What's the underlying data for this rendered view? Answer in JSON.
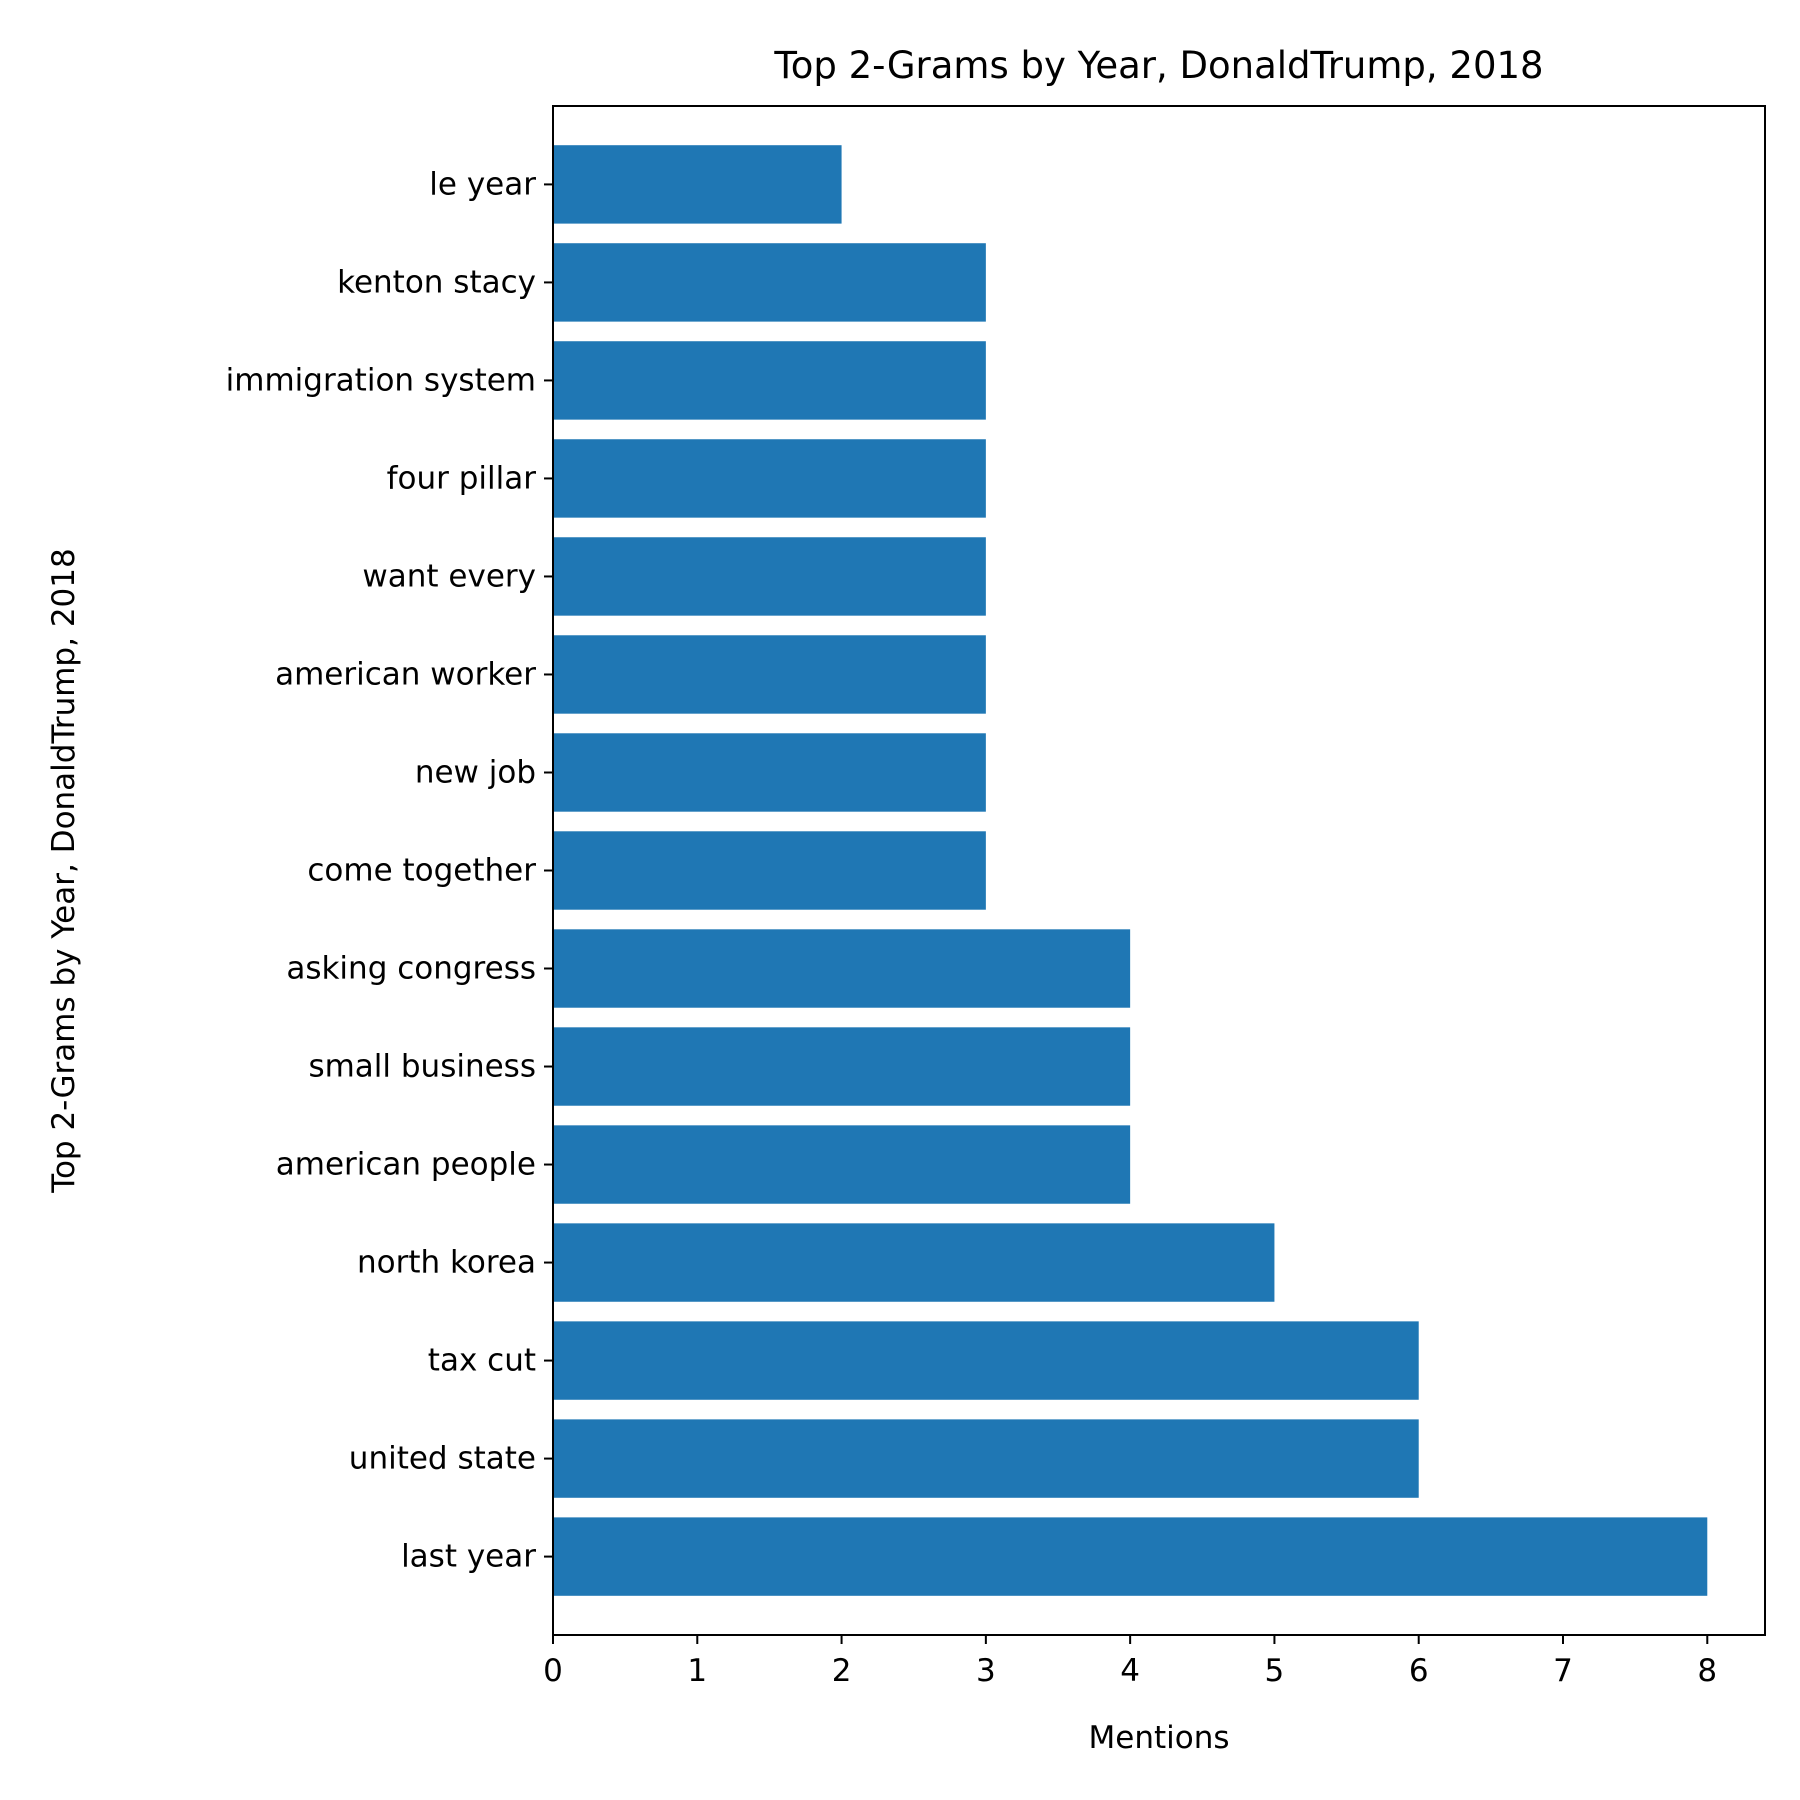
{
  "chart_data": {
    "type": "bar",
    "orientation": "horizontal",
    "title": "Top 2-Grams by Year, DonaldTrump, 2018",
    "xlabel": "Mentions",
    "ylabel": "Top 2-Grams by Year, DonaldTrump, 2018",
    "categories": [
      "last year",
      "united state",
      "tax cut",
      "north korea",
      "american people",
      "small business",
      "asking congress",
      "come together",
      "new job",
      "american worker",
      "want every",
      "four pillar",
      "immigration system",
      "kenton stacy",
      "le year"
    ],
    "values": [
      8,
      6,
      6,
      5,
      4,
      4,
      4,
      3,
      3,
      3,
      3,
      3,
      3,
      3,
      2
    ],
    "xlim": [
      0,
      8.4
    ],
    "xticks": [
      0,
      1,
      2,
      3,
      4,
      5,
      6,
      7,
      8
    ],
    "bar_color": "#1f77b4",
    "grid": false,
    "legend": "none"
  }
}
